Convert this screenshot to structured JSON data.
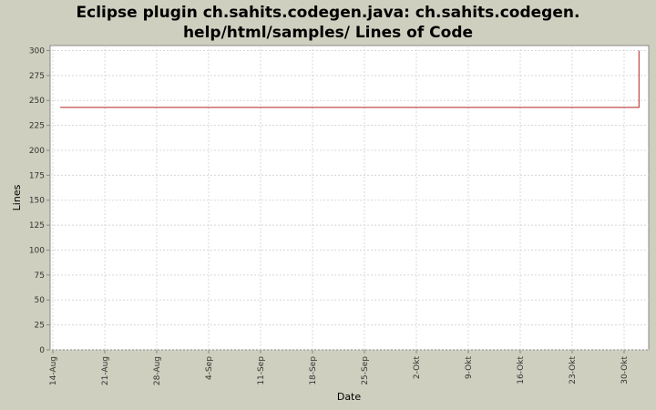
{
  "chart_data": {
    "type": "line",
    "title_lines": [
      "Eclipse plugin ch.sahits.codegen.java: ch.sahits.codegen.",
      "help/html/samples/ Lines of Code"
    ],
    "xlabel": "Date",
    "ylabel": "Lines",
    "x_ticks": [
      "14-Aug",
      "21-Aug",
      "28-Aug",
      "4-Sep",
      "11-Sep",
      "18-Sep",
      "25-Sep",
      "2-Okt",
      "9-Okt",
      "16-Okt",
      "23-Okt",
      "30-Okt"
    ],
    "y_ticks": [
      "0",
      "25",
      "50",
      "75",
      "100",
      "125",
      "150",
      "175",
      "200",
      "225",
      "250",
      "275",
      "300"
    ],
    "ylim": [
      0,
      305
    ],
    "grid": true,
    "series": [
      {
        "color": "#b22222",
        "points": [
          {
            "x": "2008-08-15",
            "y": 243
          },
          {
            "x": "2008-11-01",
            "y": 243
          },
          {
            "x": "2008-11-01",
            "y": 300
          }
        ]
      }
    ]
  }
}
